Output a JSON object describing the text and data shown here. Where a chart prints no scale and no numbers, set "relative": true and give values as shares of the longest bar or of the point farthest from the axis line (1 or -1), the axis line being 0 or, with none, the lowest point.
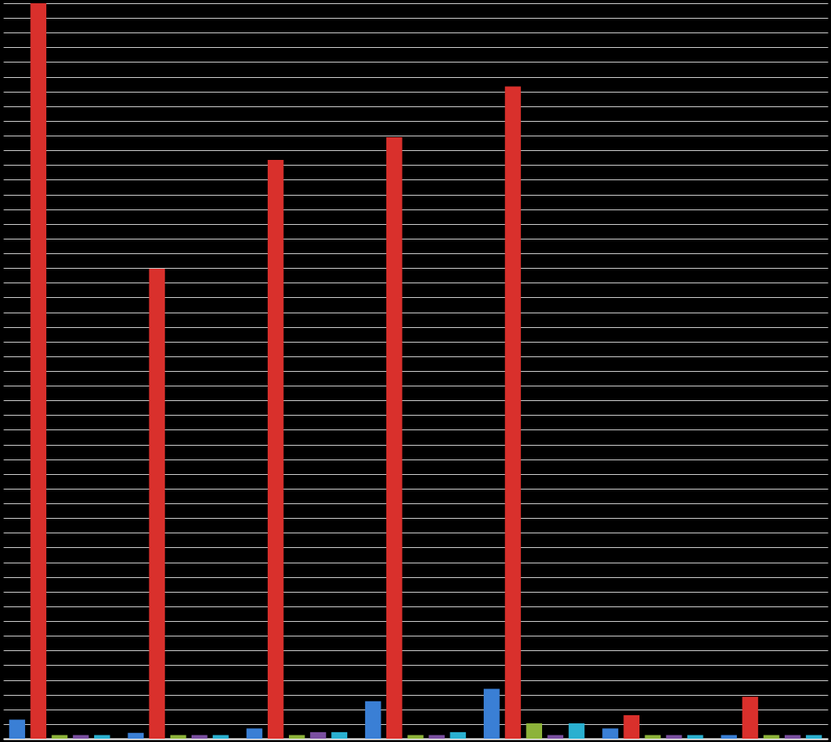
{
  "chart_data": {
    "type": "bar",
    "relative": true,
    "categories": [
      null,
      null,
      null,
      null,
      null,
      null,
      null
    ],
    "series": [
      {
        "color": "#3a7fd5",
        "values": [
          0.026,
          0.008,
          0.014,
          0.051,
          0.068,
          0.014,
          0.005
        ]
      },
      {
        "color": "#d9302c",
        "values": [
          1,
          0.639,
          0.787,
          0.818,
          0.887,
          0.032,
          0.057
        ]
      },
      {
        "color": "#8db33a",
        "values": [
          0.005,
          0.005,
          0.005,
          0.005,
          0.021,
          0.005,
          0.005
        ]
      },
      {
        "color": "#7a4fa0",
        "values": [
          0.005,
          0.005,
          0.009,
          0.005,
          0.005,
          0.005,
          0.005
        ]
      },
      {
        "color": "#2ab0d0",
        "values": [
          0.005,
          0.005,
          0.009,
          0.009,
          0.021,
          0.005,
          0.005
        ]
      }
    ],
    "grid": true,
    "legend": false,
    "tick_labels": false
  }
}
